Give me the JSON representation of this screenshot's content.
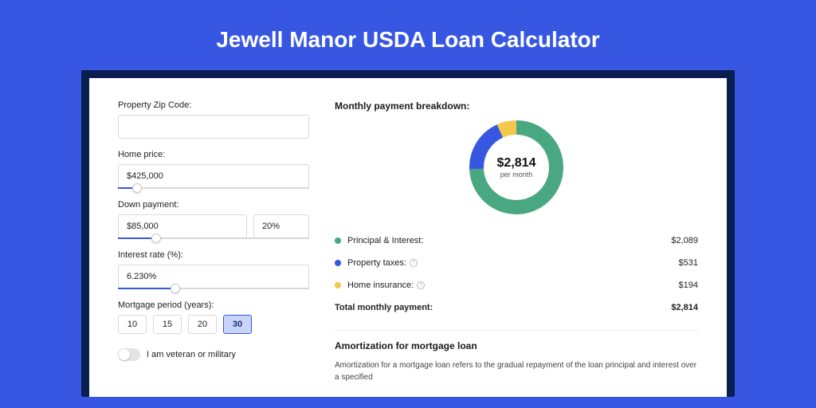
{
  "page": {
    "title": "Jewell Manor USDA Loan Calculator",
    "background_color": "#3757e2",
    "card_outer_color": "#0a1f50",
    "card_color": "#ffffff"
  },
  "form": {
    "zip": {
      "label": "Property Zip Code:",
      "value": ""
    },
    "home_price": {
      "label": "Home price:",
      "value": "$425,000",
      "slider_pct": 10
    },
    "down_payment": {
      "label": "Down payment:",
      "amount": "$85,000",
      "percent": "20%",
      "slider_pct": 20
    },
    "interest_rate": {
      "label": "Interest rate (%):",
      "value": "6.230%",
      "slider_pct": 30
    },
    "mortgage_period": {
      "label": "Mortgage period (years):",
      "options": [
        "10",
        "15",
        "20",
        "30"
      ],
      "selected": "30"
    },
    "veteran": {
      "label": "I am veteran or military",
      "checked": false
    }
  },
  "breakdown": {
    "title": "Monthly payment breakdown:",
    "chart": {
      "type": "donut",
      "center_value": "$2,814",
      "center_sub": "per month",
      "segments": [
        {
          "name": "principal_interest",
          "value": 2089,
          "pct": 74.2,
          "color": "#49a882"
        },
        {
          "name": "property_taxes",
          "value": 531,
          "pct": 18.9,
          "color": "#3757e2"
        },
        {
          "name": "home_insurance",
          "value": 194,
          "pct": 6.9,
          "color": "#f2c94c"
        }
      ],
      "stroke_width": 18,
      "radius": 50,
      "size": 120
    },
    "rows": [
      {
        "key": "principal_interest",
        "label": "Principal & Interest:",
        "value": "$2,089",
        "dot_color": "#49a882",
        "info": false
      },
      {
        "key": "property_taxes",
        "label": "Property taxes:",
        "value": "$531",
        "dot_color": "#3757e2",
        "info": true
      },
      {
        "key": "home_insurance",
        "label": "Home insurance:",
        "value": "$194",
        "dot_color": "#f2c94c",
        "info": true
      }
    ],
    "total": {
      "label": "Total monthly payment:",
      "value": "$2,814"
    }
  },
  "amortization": {
    "title": "Amortization for mortgage loan",
    "body": "Amortization for a mortgage loan refers to the gradual repayment of the loan principal and interest over a specified"
  }
}
